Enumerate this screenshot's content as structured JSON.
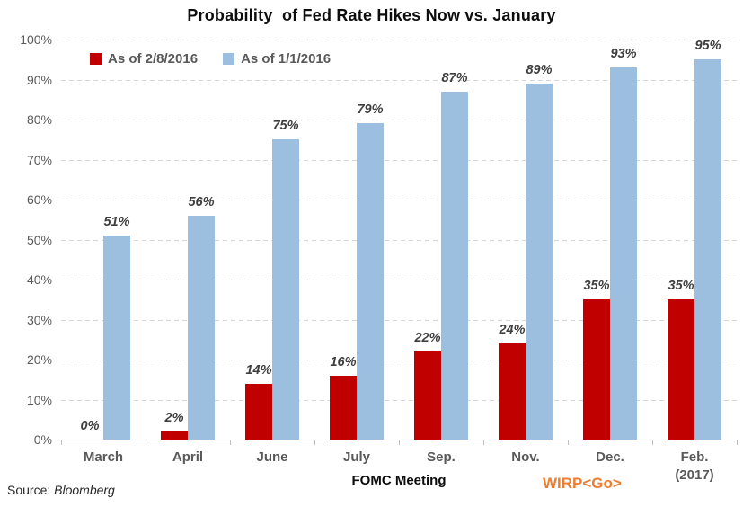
{
  "title": "Probability  of Fed Rate Hikes Now vs. January",
  "chart_data": {
    "type": "bar",
    "categories": [
      "March",
      "April",
      "June",
      "July",
      "Sep.",
      "Nov.",
      "Dec.",
      "Feb.\n(2017)"
    ],
    "series": [
      {
        "name": "As of 2/8/2016",
        "color": "#C00000",
        "values": [
          0,
          2,
          14,
          16,
          22,
          24,
          35,
          35
        ]
      },
      {
        "name": "As of 1/1/2016",
        "color": "#9CBEDF",
        "values": [
          51,
          56,
          75,
          79,
          87,
          89,
          93,
          95
        ]
      }
    ],
    "data_labels": [
      "0%",
      "2%",
      "14%",
      "16%",
      "22%",
      "24%",
      "35%",
      "35%",
      "51%",
      "56%",
      "75%",
      "79%",
      "87%",
      "89%",
      "93%",
      "95%"
    ],
    "title": "Probability  of Fed Rate Hikes Now vs. January",
    "xlabel": "FOMC Meeting",
    "ylabel": "",
    "ylim": [
      0,
      100
    ],
    "ytick_step": 10,
    "ytick_suffix": "%",
    "grid": "horizontal-dashed",
    "legend_position": "inside-top-left"
  },
  "footer": {
    "source_prefix": "Source:",
    "source_name": "Bloomberg",
    "terminal_code": "WIRP<Go>"
  },
  "colors": {
    "series_red": "#C00000",
    "series_blue": "#9CBEDF",
    "axis_text": "#595959",
    "data_label": "#3f3f3f",
    "gridline": "#d6d6d6",
    "axis_line": "#bfbfbf",
    "terminal_orange": "#ED7D31",
    "background": "#FFFFFF"
  }
}
